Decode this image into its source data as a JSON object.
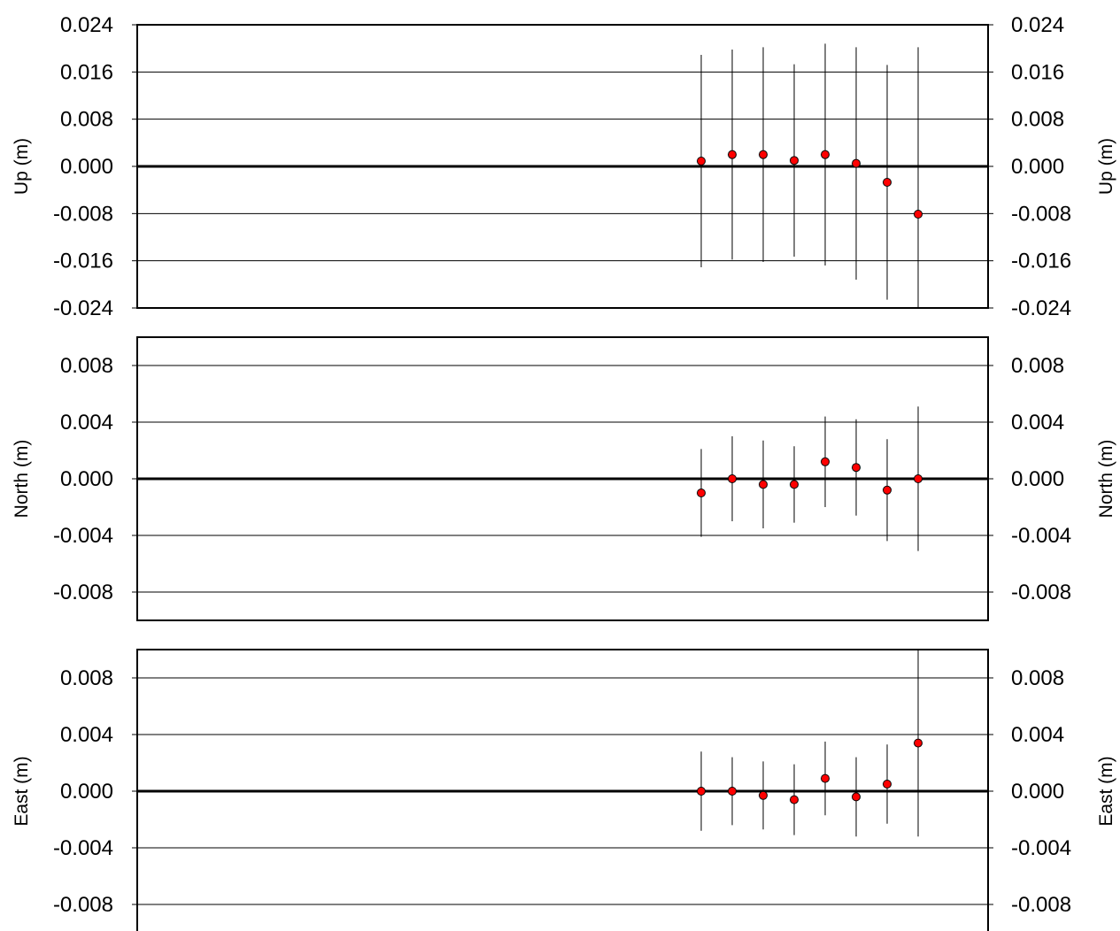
{
  "chart_data": [
    {
      "type": "scatter",
      "title": "",
      "ylabel": "Up (m)",
      "xlabel": "",
      "ylim": [
        -0.024,
        0.024
      ],
      "yticks": [
        "0.024",
        "0.016",
        "0.008",
        "0.000",
        "-0.008",
        "-0.016",
        "-0.024"
      ],
      "grid": true,
      "x": [
        1,
        2,
        3,
        4,
        5,
        6,
        7,
        8
      ],
      "values": [
        0.0009,
        0.002,
        0.002,
        0.001,
        0.002,
        0.0005,
        -0.0027,
        -0.0081
      ],
      "errors": [
        0.018,
        0.0178,
        0.0182,
        0.0163,
        0.0188,
        0.0197,
        0.0199,
        0.0283
      ],
      "marker_color": "#ff0000"
    },
    {
      "type": "scatter",
      "title": "",
      "ylabel": "North (m)",
      "xlabel": "",
      "ylim": [
        -0.01,
        0.01
      ],
      "yticks": [
        "0.008",
        "0.004",
        "0.000",
        "-0.004",
        "-0.008"
      ],
      "grid": true,
      "x": [
        1,
        2,
        3,
        4,
        5,
        6,
        7,
        8
      ],
      "values": [
        -0.001,
        0.0,
        -0.0004,
        -0.0004,
        0.0012,
        0.0008,
        -0.0008,
        0.0
      ],
      "errors": [
        0.0031,
        0.003,
        0.0031,
        0.0027,
        0.0032,
        0.0034,
        0.0036,
        0.0051
      ],
      "marker_color": "#ff0000"
    },
    {
      "type": "scatter",
      "title": "",
      "ylabel": "East (m)",
      "xlabel": "",
      "ylim": [
        -0.01,
        0.01
      ],
      "yticks": [
        "0.008",
        "0.004",
        "0.000",
        "-0.004",
        "-0.008"
      ],
      "grid": true,
      "x": [
        1,
        2,
        3,
        4,
        5,
        6,
        7,
        8
      ],
      "values": [
        0.0,
        0.0,
        -0.0003,
        -0.0006,
        0.0009,
        -0.0004,
        0.0005,
        0.0034
      ],
      "errors": [
        0.0028,
        0.0024,
        0.0024,
        0.0025,
        0.0026,
        0.0028,
        0.0028,
        0.0066
      ],
      "marker_color": "#ff0000"
    }
  ]
}
